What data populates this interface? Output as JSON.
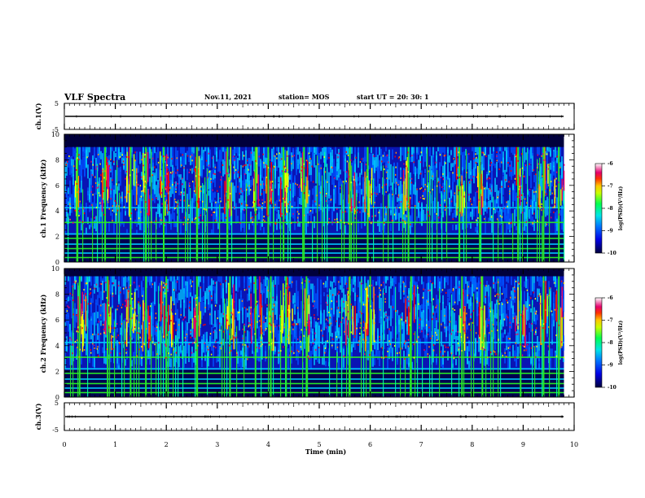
{
  "chart_data": [
    {
      "type": "line",
      "panel": "ch1-waveform",
      "ylabel": "ch.1(V)",
      "ylim": [
        -5,
        5
      ],
      "yticks": [
        "5",
        "-5"
      ],
      "x_range": [
        0,
        10
      ],
      "trace_level": 0
    },
    {
      "type": "heatmap",
      "panel": "ch1-spectrogram",
      "ylabel": "ch.1  Frequency (kHz)",
      "ylim": [
        0,
        10
      ],
      "yticks": [
        "0",
        "2",
        "4",
        "6",
        "8",
        "10"
      ],
      "x_range": [
        0,
        10
      ],
      "data_end_min": 9.8,
      "colorbar": {
        "label": "log(PSD)(V²/Hz)",
        "range": [
          -10,
          -6
        ],
        "ticks": [
          "-6",
          "-7",
          "-8",
          "-9",
          "-10"
        ]
      },
      "bright_bursts_min": [
        0.25,
        0.8,
        1.3,
        1.6,
        1.95,
        2.6,
        3.2,
        3.75,
        4.0,
        4.3,
        4.7,
        5.6,
        5.95,
        6.75,
        7.75,
        8.15,
        8.9,
        9.4,
        9.7
      ]
    },
    {
      "type": "heatmap",
      "panel": "ch2-spectrogram",
      "ylabel": "ch.2  Frequency (kHz)",
      "ylim": [
        0,
        10
      ],
      "yticks": [
        "0",
        "2",
        "4",
        "6",
        "8",
        "10"
      ],
      "x_range": [
        0,
        10
      ],
      "data_end_min": 9.8,
      "colorbar": {
        "label": "log(PSD)(V²/Hz)",
        "range": [
          -10,
          -6
        ],
        "ticks": [
          "-6",
          "-7",
          "-8",
          "-9",
          "-10"
        ]
      },
      "bright_bursts_min": [
        0.3,
        0.85,
        1.3,
        1.6,
        2.0,
        2.6,
        3.25,
        3.75,
        4.05,
        4.35,
        4.75,
        5.6,
        6.0,
        6.8,
        7.8,
        8.2,
        8.95,
        9.4,
        9.7
      ]
    },
    {
      "type": "line",
      "panel": "ch3-waveform",
      "ylabel": "ch.3(V)",
      "ylim": [
        -5,
        5
      ],
      "yticks": [
        "5",
        "-5"
      ],
      "x_range": [
        0,
        10
      ],
      "trace_level": 0,
      "xlabel": "Time  (min)",
      "xticks": [
        "0",
        "1",
        "2",
        "3",
        "4",
        "5",
        "6",
        "7",
        "8",
        "9",
        "10"
      ]
    }
  ],
  "header": {
    "title": "VLF  Spectra",
    "date": "Nov.11, 2021",
    "station": "station= MOS",
    "start": "start  UT  =    20: 30: 1"
  },
  "colors": {
    "colormap": [
      "#00003c",
      "#0000c8",
      "#0050ff",
      "#00c8ff",
      "#00ffa0",
      "#28e628",
      "#b4ff00",
      "#ffff00",
      "#ff8c00",
      "#ff0000",
      "#e60064",
      "#ffffff"
    ]
  }
}
